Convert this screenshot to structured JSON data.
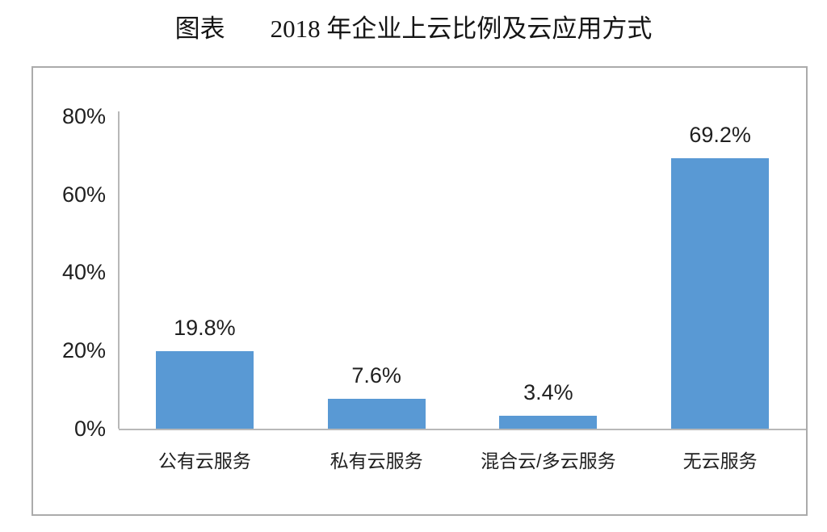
{
  "title": {
    "prefix": "图表",
    "main": "2018 年企业上云比例及云应用方式"
  },
  "chart_data": {
    "type": "bar",
    "title": "2018 年企业上云比例及云应用方式",
    "categories": [
      "公有云服务",
      "私有云服务",
      "混合云/多云服务",
      "无云服务"
    ],
    "values": [
      19.8,
      7.6,
      3.4,
      69.2
    ],
    "value_labels": [
      "19.8%",
      "7.6%",
      "3.4%",
      "69.2%"
    ],
    "xlabel": "",
    "ylabel": "",
    "ylim": [
      0,
      80
    ],
    "yticks": [
      "0%",
      "20%",
      "40%",
      "60%",
      "80%"
    ],
    "ytick_step": 20,
    "grid": false,
    "legend": null,
    "bar_color": "#5999D4",
    "axis_color": "#b8b8b8",
    "text_color": "#1f1f1f"
  }
}
